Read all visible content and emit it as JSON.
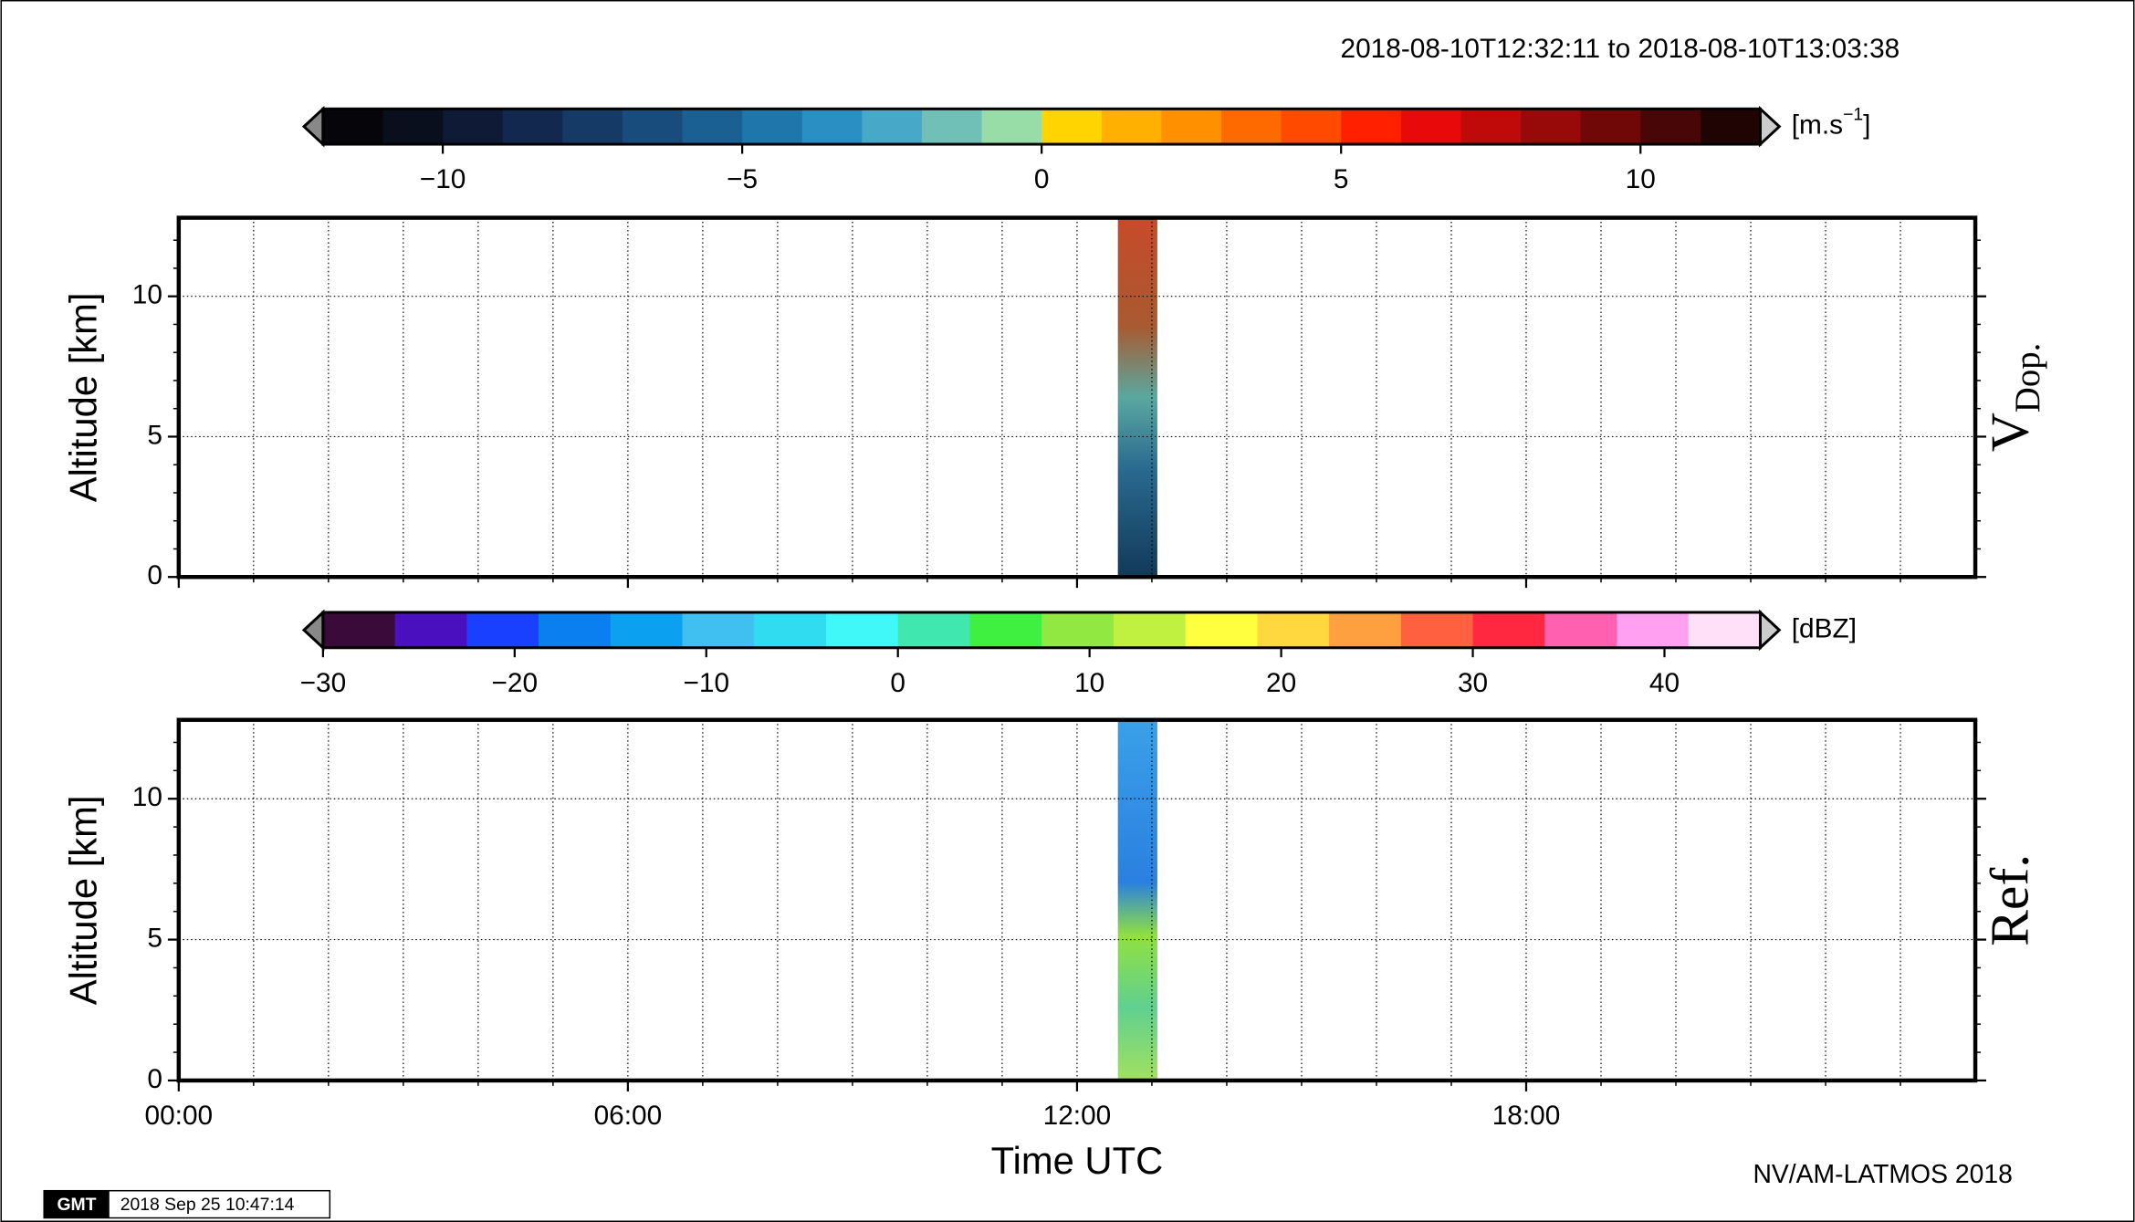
{
  "chart_data": [
    {
      "type": "heatmap",
      "title": "2018-08-10T12:32:11 to 2018-08-10T13:03:38",
      "panel_label": "V",
      "panel_label_sub": "Dop.",
      "y_label": "Altitude [km]",
      "xlim": [
        0,
        24
      ],
      "xticks": [
        {
          "value": 0,
          "label": "00:00"
        },
        {
          "value": 6,
          "label": "06:00"
        },
        {
          "value": 12,
          "label": "12:00"
        },
        {
          "value": 18,
          "label": "18:00"
        }
      ],
      "x_minor_ticks": [
        1,
        2,
        3,
        4,
        5,
        7,
        8,
        9,
        10,
        11,
        13,
        14,
        15,
        16,
        17,
        19,
        20,
        21,
        22,
        23
      ],
      "ylim": [
        0,
        12.8
      ],
      "yticks": [
        0,
        5,
        10
      ],
      "y_minor_ticks": [
        1,
        2,
        3,
        4,
        6,
        7,
        8,
        9,
        11,
        12
      ],
      "grid": true,
      "colorbar": {
        "label": "[m.s",
        "label_exp": "−1",
        "label_end": "]",
        "lim": [
          -12,
          12
        ],
        "ticks": [
          {
            "value": -10,
            "label": "−10"
          },
          {
            "value": -5,
            "label": "−5"
          },
          0,
          5,
          10
        ],
        "colors": [
          "#05050a",
          "#0a0f1e",
          "#0e1a36",
          "#12284f",
          "#153a66",
          "#184c7c",
          "#1b6092",
          "#1e76ab",
          "#2a90c4",
          "#48a8c8",
          "#70c0b8",
          "#98dca8",
          "#ffd400",
          "#ffb000",
          "#ff9000",
          "#ff6a00",
          "#ff4a00",
          "#ff2000",
          "#e80a0a",
          "#c00a0a",
          "#980a0a",
          "#700808",
          "#480606",
          "#200404"
        ]
      }
    },
    {
      "type": "heatmap",
      "panel_label": "Ref.",
      "y_label": "Altitude [km]",
      "x_label": "Time UTC",
      "xlim": [
        0,
        24
      ],
      "xticks": [
        {
          "value": 0,
          "label": "00:00"
        },
        {
          "value": 6,
          "label": "06:00"
        },
        {
          "value": 12,
          "label": "12:00"
        },
        {
          "value": 18,
          "label": "18:00"
        }
      ],
      "x_minor_ticks": [
        1,
        2,
        3,
        4,
        5,
        7,
        8,
        9,
        10,
        11,
        13,
        14,
        15,
        16,
        17,
        19,
        20,
        21,
        22,
        23
      ],
      "ylim": [
        0,
        12.8
      ],
      "yticks": [
        0,
        5,
        10
      ],
      "y_minor_ticks": [
        1,
        2,
        3,
        4,
        6,
        7,
        8,
        9,
        11,
        12
      ],
      "grid": true,
      "colorbar": {
        "label": "[dBZ]",
        "lim": [
          -30,
          45
        ],
        "ticks": [
          {
            "value": -30,
            "label": "−30"
          },
          {
            "value": -20,
            "label": "−20"
          },
          {
            "value": -10,
            "label": "−10"
          },
          0,
          10,
          20,
          30,
          40
        ],
        "colors": [
          "#3a0a3a",
          "#4a10c0",
          "#1a40ff",
          "#0a80f0",
          "#0ca0f0",
          "#40c0f0",
          "#30dcf0",
          "#40f8f8",
          "#40e8b0",
          "#40f040",
          "#90e840",
          "#c0f040",
          "#ffff40",
          "#ffd840",
          "#ffa040",
          "#ff6040",
          "#ff2840",
          "#ff60b0",
          "#ffa0f0",
          "#ffe0f8"
        ]
      }
    }
  ],
  "footer": {
    "credit": "NV/AM-LATMOS 2018",
    "logo": "GMT",
    "stamp": "2018 Sep 25 10:47:14"
  }
}
